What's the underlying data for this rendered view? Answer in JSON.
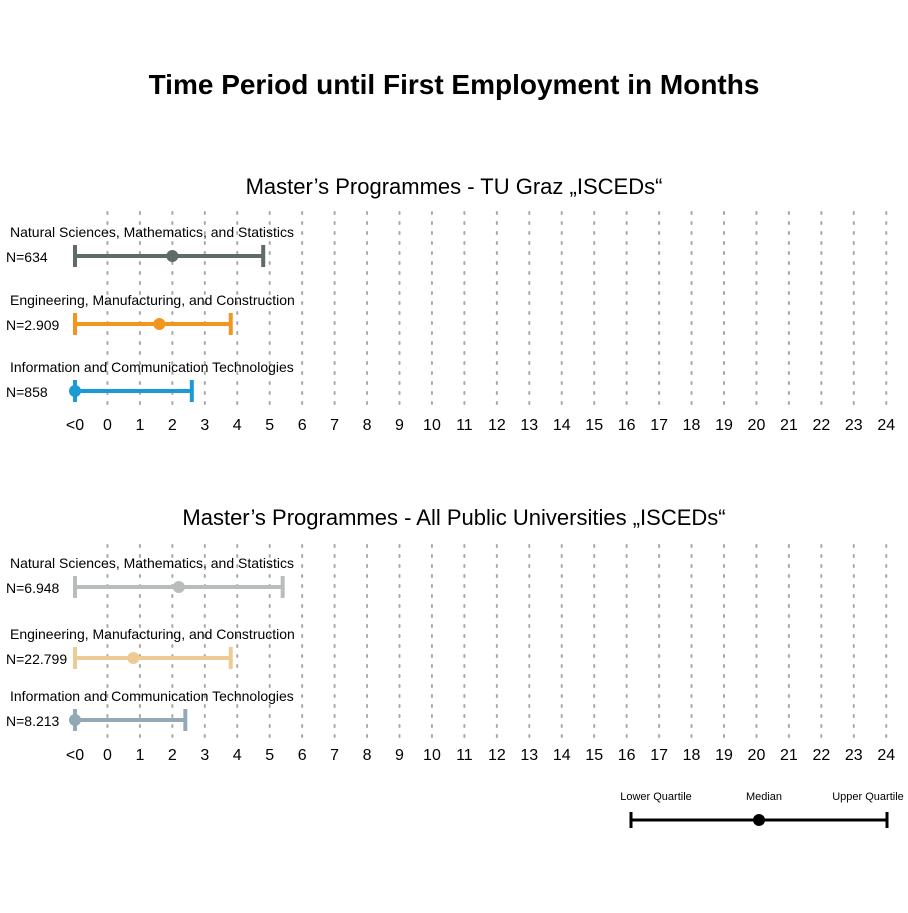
{
  "title": "Time Period until First Employment in Months",
  "chart_data": {
    "type": "errorbar",
    "x_ticks": [
      "<0",
      "0",
      "1",
      "2",
      "3",
      "4",
      "5",
      "6",
      "7",
      "8",
      "9",
      "10",
      "11",
      "12",
      "13",
      "14",
      "15",
      "16",
      "17",
      "18",
      "19",
      "20",
      "21",
      "22",
      "23",
      "24"
    ],
    "xlim": [
      -1,
      24
    ],
    "grid": "dotted-vertical",
    "panels": [
      {
        "subtitle": "Master’s Programmes - TU Graz „ISCEDs“",
        "rows": [
          {
            "label": "Natural Sciences, Mathematics, and Statistics",
            "n": "N=634",
            "lower": -1,
            "median": 2.0,
            "upper": 4.8,
            "color": "#5e6b68"
          },
          {
            "label": "Engineering, Manufacturing, and Construction",
            "n": "N=2.909",
            "lower": -1,
            "median": 1.6,
            "upper": 3.8,
            "color": "#f2961e"
          },
          {
            "label": "Information and Communication Technologies",
            "n": "N=858",
            "lower": -1,
            "median": -1,
            "upper": 2.6,
            "color": "#1b9bd6"
          }
        ]
      },
      {
        "subtitle": "Master’s Programmes - All Public Universities „ISCEDs“",
        "rows": [
          {
            "label": "Natural Sciences, Mathematics, and Statistics",
            "n": "N=6.948",
            "lower": -1,
            "median": 2.2,
            "upper": 5.4,
            "color": "#b8bcbb"
          },
          {
            "label": "Engineering, Manufacturing, and Construction",
            "n": "N=22.799",
            "lower": -1,
            "median": 0.8,
            "upper": 3.8,
            "color": "#eecb94"
          },
          {
            "label": "Information and Communication Technologies",
            "n": "N=8.213",
            "lower": -1,
            "median": -1,
            "upper": 2.4,
            "color": "#93a9b8"
          }
        ]
      }
    ],
    "legend": {
      "lower_label": "Lower Quartile",
      "median_label": "Median",
      "upper_label": "Upper Quartile",
      "placement": "bottom-right",
      "color": "#000000"
    }
  }
}
